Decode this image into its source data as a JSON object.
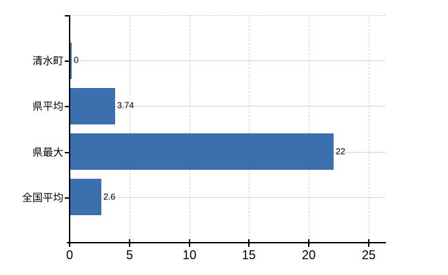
{
  "chart_data": {
    "type": "bar",
    "orientation": "horizontal",
    "title": "",
    "xlabel": "",
    "ylabel": "",
    "categories": [
      "清水町",
      "県平均",
      "県最大",
      "全国平均"
    ],
    "values": [
      0,
      3.74,
      22,
      2.6
    ],
    "value_labels": [
      "0",
      "3.74",
      "22",
      "2.6"
    ],
    "xticks": [
      0,
      5,
      10,
      15,
      20,
      25
    ],
    "xtick_labels": [
      "0",
      "5",
      "10",
      "15",
      "20",
      "25"
    ],
    "xlim": [
      0,
      26.4
    ],
    "grid": true,
    "legend_position": "none",
    "colors": {
      "bar": "#3b6fad",
      "vertical_gridline": "#d6cddb",
      "horizontal_gridline": "#ccd8cb",
      "top_border": "#d9ced7",
      "axis": "#000000",
      "text": "#000000",
      "background": "#ffffff"
    }
  }
}
